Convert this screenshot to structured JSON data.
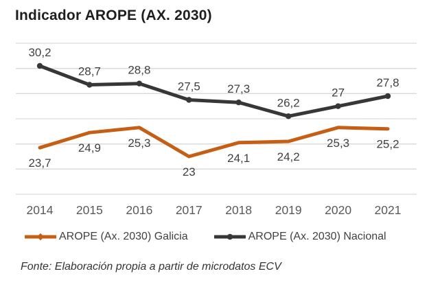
{
  "title": "Indicador AROPE (AX. 2030)",
  "source_note": "Fonte: Elaboración propia a partir de microdatos ECV",
  "colors": {
    "title_text": "#1e1e1e",
    "gridline": "#d9d9d9",
    "axis_label": "#595959",
    "data_label": "#404040",
    "legend_text": "#404040",
    "galicia_accent": "#c55f15",
    "nacional_accent": "#373737",
    "background": "#ffffff"
  },
  "chart_data": {
    "type": "line",
    "title": "Indicador AROPE (AX. 2030)",
    "xlabel": "",
    "ylabel": "",
    "categories": [
      "2014",
      "2015",
      "2016",
      "2017",
      "2018",
      "2019",
      "2020",
      "2021"
    ],
    "series": [
      {
        "name": "AROPE (Ax. 2030) Galicia",
        "values": [
          23.7,
          24.9,
          25.3,
          23,
          24.1,
          24.2,
          25.3,
          25.2
        ],
        "labels": [
          "23,7",
          "24,9",
          "25,3",
          "23",
          "24,1",
          "24,2",
          "25,3",
          "25,2"
        ],
        "color": "#c55f15",
        "marker": "diamond",
        "label_position": "below"
      },
      {
        "name": "AROPE (Ax. 2030) Nacional",
        "values": [
          30.2,
          28.7,
          28.8,
          27.5,
          27.3,
          26.2,
          27,
          27.8
        ],
        "labels": [
          "30,2",
          "28,7",
          "28,8",
          "27,5",
          "27,3",
          "26,2",
          "27",
          "27,8"
        ],
        "color": "#373737",
        "marker": "circle",
        "label_position": "above"
      }
    ],
    "ylim": [
      20,
      32
    ],
    "grid_step": 2,
    "grid": true,
    "legend_position": "bottom"
  }
}
